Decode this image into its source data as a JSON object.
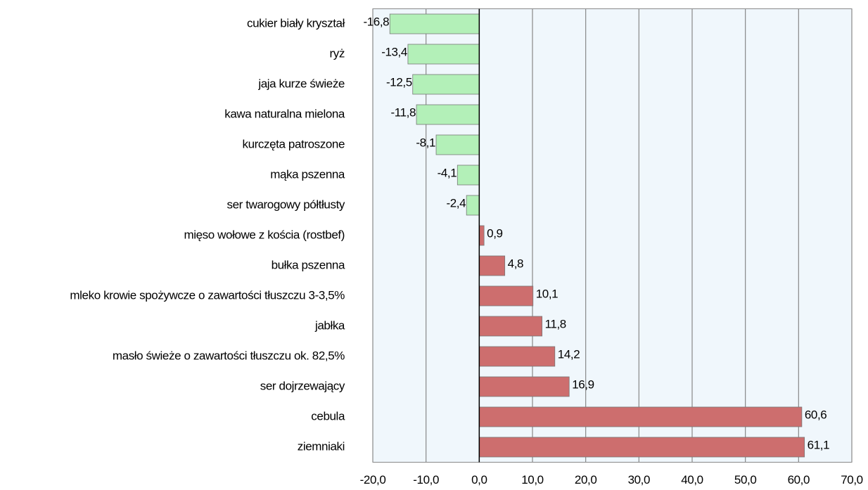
{
  "chart_data": {
    "type": "hbar",
    "categories": [
      "cukier biały kryształ",
      "ryż",
      "jaja kurze świeże",
      "kawa naturalna mielona",
      "kurczęta patroszone",
      "mąka pszenna",
      "ser twarogowy półtłusty",
      "mięso wołowe z kościa (rostbef)",
      "bułka pszenna",
      "mleko krowie spożywcze o zawartości tłuszczu 3-3,5%",
      "jabłka",
      "masło świeże o zawartości tłuszczu ok. 82,5%",
      "ser dojrzewający",
      "cebula",
      "ziemniaki"
    ],
    "values": [
      -16.8,
      -13.4,
      -12.5,
      -11.8,
      -8.1,
      -4.1,
      -2.4,
      0.9,
      4.8,
      10.1,
      11.8,
      14.2,
      16.9,
      60.6,
      61.1
    ],
    "value_labels": [
      "-16,8",
      "-13,4",
      "-12,5",
      "-11,8",
      "-8,1",
      "-4,1",
      "-2,4",
      "0,9",
      "4,8",
      "10,1",
      "11,8",
      "14,2",
      "16,9",
      "60,6",
      "61,1"
    ],
    "negative_color": "#b3f0b8",
    "positive_color": "#cd6e6e",
    "xlim": [
      -20,
      70
    ],
    "xticks": [
      {
        "value": -20,
        "label": "-20,0"
      },
      {
        "value": -10,
        "label": "-10,0"
      },
      {
        "value": 0,
        "label": "0,0"
      },
      {
        "value": 10,
        "label": "10,0"
      },
      {
        "value": 20,
        "label": "20,0"
      },
      {
        "value": 30,
        "label": "30,0"
      },
      {
        "value": 40,
        "label": "40,0"
      },
      {
        "value": 50,
        "label": "50,0"
      },
      {
        "value": 60,
        "label": "60,0"
      },
      {
        "value": 70,
        "label": "70,0"
      }
    ],
    "grid": true
  }
}
